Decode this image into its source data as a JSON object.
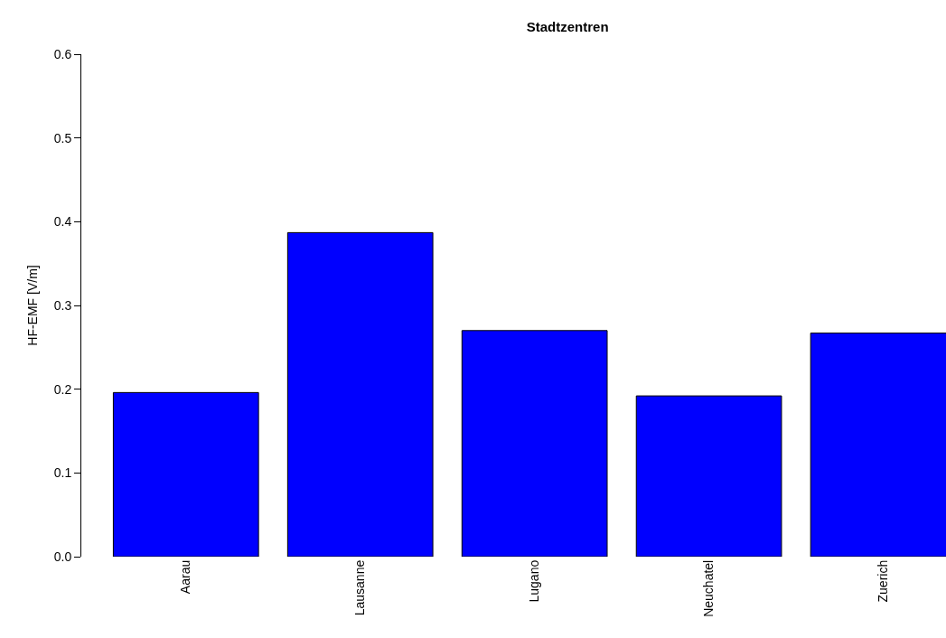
{
  "chart_data": {
    "type": "bar",
    "title": "Stadtzentren",
    "ylabel": "HF-EMF [V/m]",
    "categories": [
      "Aarau",
      "Lausanne",
      "Lugano",
      "Neuchatel",
      "Zuerich"
    ],
    "values": [
      0.196,
      0.387,
      0.27,
      0.192,
      0.267
    ],
    "color": "#0000ff",
    "ylim": [
      0,
      0.6
    ],
    "yticks": [
      {
        "value": 0,
        "label": "0.0"
      },
      0.1,
      0.2,
      0.3,
      0.4,
      0.5,
      0.6
    ],
    "grid": false
  }
}
